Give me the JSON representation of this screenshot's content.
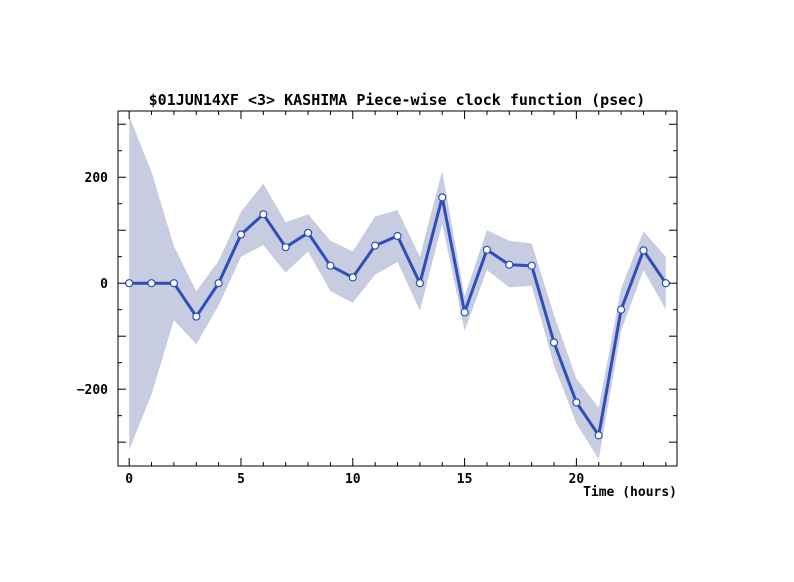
{
  "chart_data": {
    "type": "line",
    "title": "$01JUN14XF <3>  KASHIMA   Piece-wise clock function (psec)",
    "xlabel": "Time (hours)",
    "ylabel": "",
    "xlim": [
      -0.5,
      24.5
    ],
    "ylim": [
      -345,
      325
    ],
    "x_ticks": [
      0,
      5,
      10,
      15,
      20
    ],
    "x_tick_labels": [
      "0",
      "5",
      "10",
      "15",
      "20"
    ],
    "y_ticks": [
      -200,
      0,
      200
    ],
    "y_tick_labels": [
      "−200",
      "0",
      "200"
    ],
    "grid": false,
    "legend": "none",
    "colors": {
      "line": "#2f4fb8",
      "band": "#c8cce0",
      "marker_fill": "#ffffff",
      "marker_stroke": "#2f4fb8",
      "axis": "#000000"
    },
    "series": [
      {
        "x": [
          0,
          1,
          2,
          3,
          4,
          5,
          6,
          7,
          8,
          9,
          10,
          11,
          12,
          13,
          14,
          15,
          16,
          17,
          18,
          19,
          20,
          21,
          22,
          23,
          24
        ],
        "values": [
          0,
          0,
          0,
          -63,
          0,
          92,
          130,
          68,
          95,
          33,
          11,
          71,
          89,
          0,
          162,
          -55,
          63,
          35,
          33,
          -112,
          -225,
          -287,
          -50,
          62,
          0
        ],
        "upper": [
          315,
          210,
          70,
          -15,
          42,
          135,
          188,
          115,
          130,
          80,
          60,
          126,
          138,
          50,
          212,
          -25,
          100,
          80,
          75,
          -60,
          -180,
          -235,
          -10,
          98,
          50
        ],
        "lower": [
          -315,
          -210,
          -70,
          -115,
          -42,
          50,
          72,
          20,
          60,
          -15,
          -37,
          16,
          40,
          -52,
          112,
          -90,
          25,
          -8,
          -5,
          -155,
          -265,
          -332,
          -90,
          25,
          -50
        ]
      }
    ]
  }
}
